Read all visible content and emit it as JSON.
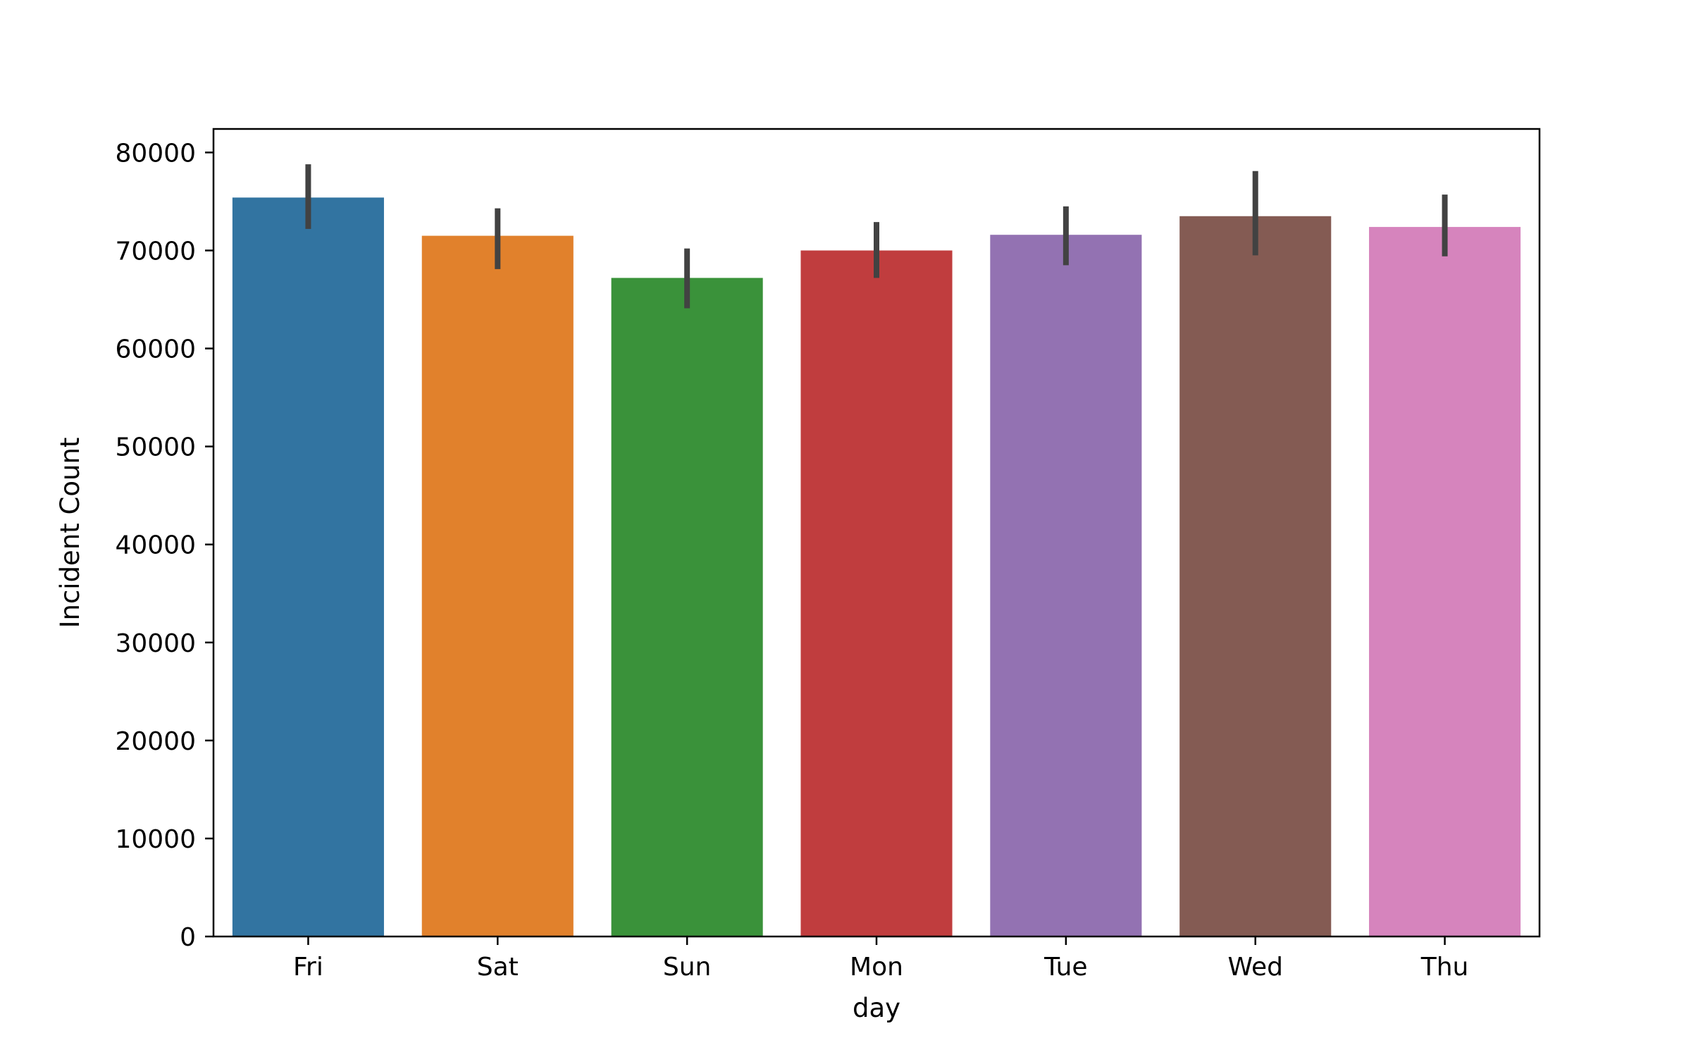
{
  "chart_data": {
    "type": "bar",
    "title": "",
    "xlabel": "day",
    "ylabel": "Incident Count",
    "categories": [
      "Fri",
      "Sat",
      "Sun",
      "Mon",
      "Tue",
      "Wed",
      "Thu"
    ],
    "values": [
      75400,
      71500,
      67200,
      70000,
      71600,
      73500,
      72400
    ],
    "error_bars": [
      {
        "low": 72200,
        "high": 78800
      },
      {
        "low": 68100,
        "high": 74300
      },
      {
        "low": 64100,
        "high": 70200
      },
      {
        "low": 67200,
        "high": 72900
      },
      {
        "low": 68500,
        "high": 74500
      },
      {
        "low": 69500,
        "high": 78100
      },
      {
        "low": 69400,
        "high": 75700
      }
    ],
    "colors": [
      "#3274a1",
      "#e1812c",
      "#3a923a",
      "#c03d3e",
      "#9372b2",
      "#845b53",
      "#d684bd"
    ],
    "error_bar_color": "#424242",
    "ylim": [
      0,
      82400
    ],
    "yticks": [
      0,
      10000,
      20000,
      30000,
      40000,
      50000,
      60000,
      70000,
      80000
    ],
    "ytick_labels": [
      "0",
      "10000",
      "20000",
      "30000",
      "40000",
      "50000",
      "60000",
      "70000",
      "80000"
    ],
    "grid": false,
    "legend": "none"
  }
}
